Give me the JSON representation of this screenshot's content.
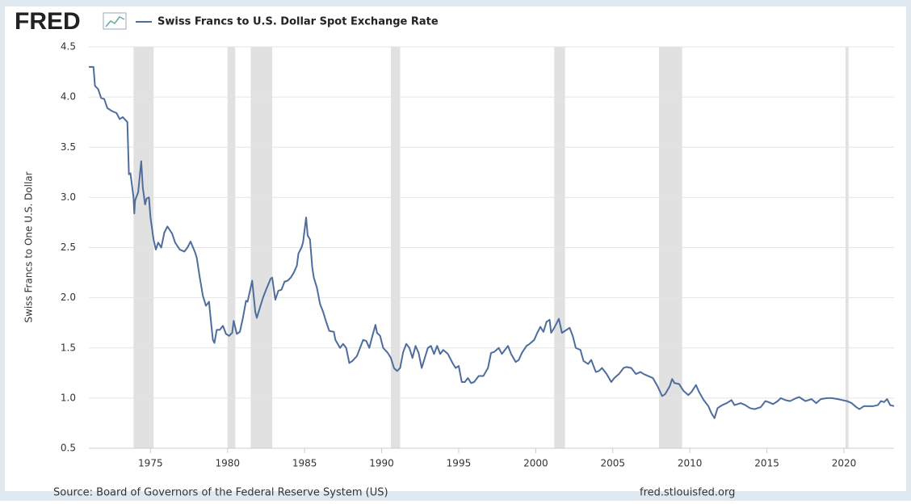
{
  "logo": "FRED",
  "source": "Source: Board of Governors of the Federal Reserve System (US)",
  "site": "fred.stlouisfed.org",
  "chart_data": {
    "type": "line",
    "title": "Swiss Francs to U.S. Dollar Spot Exchange Rate",
    "ylabel": "Swiss Francs to One U.S. Dollar",
    "xlim": [
      1971,
      2023.25
    ],
    "ylim": [
      0.5,
      4.5
    ],
    "xticks": [
      1975,
      1980,
      1985,
      1990,
      1995,
      2000,
      2005,
      2010,
      2015,
      2020
    ],
    "yticks": [
      {
        "value": 0.5,
        "label": "0.5"
      },
      {
        "value": 1,
        "label": "1.0"
      },
      {
        "value": 1.5,
        "label": "1.5"
      },
      {
        "value": 2,
        "label": "2.0"
      },
      {
        "value": 2.5,
        "label": "2.5"
      },
      {
        "value": 3,
        "label": "3.0"
      },
      {
        "value": 3.5,
        "label": "3.5"
      },
      {
        "value": 4,
        "label": "4.0"
      },
      {
        "value": 4.5,
        "label": "4.5"
      }
    ],
    "grid": true,
    "recessions": [
      [
        1973.9,
        1975.2
      ],
      [
        1980.0,
        1980.5
      ],
      [
        1981.5,
        1982.9
      ],
      [
        1990.6,
        1991.2
      ],
      [
        2001.2,
        2001.9
      ],
      [
        2008.0,
        2009.5
      ],
      [
        2020.1,
        2020.3
      ]
    ],
    "recession_color": "#e1e1e1",
    "x": [
      1971.0,
      1971.3,
      1971.4,
      1971.6,
      1971.8,
      1972.0,
      1972.2,
      1972.5,
      1972.8,
      1973.0,
      1973.2,
      1973.5,
      1973.6,
      1973.7,
      1973.9,
      1973.95,
      1974.0,
      1974.2,
      1974.4,
      1974.5,
      1974.65,
      1974.75,
      1974.9,
      1975.0,
      1975.2,
      1975.35,
      1975.5,
      1975.7,
      1975.9,
      1976.1,
      1976.4,
      1976.6,
      1976.9,
      1977.2,
      1977.4,
      1977.6,
      1977.9,
      1978.0,
      1978.2,
      1978.4,
      1978.6,
      1978.8,
      1978.9,
      1979.05,
      1979.15,
      1979.3,
      1979.5,
      1979.7,
      1979.9,
      1980.1,
      1980.3,
      1980.4,
      1980.6,
      1980.8,
      1981.0,
      1981.2,
      1981.3,
      1981.5,
      1981.6,
      1981.8,
      1981.9,
      1982.1,
      1982.3,
      1982.5,
      1982.8,
      1982.9,
      1983.1,
      1983.3,
      1983.5,
      1983.7,
      1983.9,
      1984.1,
      1984.3,
      1984.5,
      1984.6,
      1984.8,
      1984.9,
      1985.1,
      1985.2,
      1985.35,
      1985.5,
      1985.6,
      1985.8,
      1986.0,
      1986.2,
      1986.4,
      1986.6,
      1986.9,
      1987.0,
      1987.3,
      1987.5,
      1987.7,
      1987.9,
      1988.1,
      1988.4,
      1988.6,
      1988.8,
      1989.0,
      1989.2,
      1989.4,
      1989.6,
      1989.7,
      1989.9,
      1990.1,
      1990.4,
      1990.6,
      1990.8,
      1991.0,
      1991.2,
      1991.4,
      1991.6,
      1991.8,
      1992.0,
      1992.2,
      1992.4,
      1992.6,
      1992.8,
      1993.0,
      1993.2,
      1993.4,
      1993.6,
      1993.8,
      1994.0,
      1994.3,
      1994.6,
      1994.8,
      1995.0,
      1995.2,
      1995.4,
      1995.6,
      1995.8,
      1996.0,
      1996.3,
      1996.6,
      1996.9,
      1997.1,
      1997.3,
      1997.6,
      1997.8,
      1998.0,
      1998.2,
      1998.4,
      1998.7,
      1998.9,
      1999.1,
      1999.4,
      1999.6,
      1999.9,
      2000.1,
      2000.3,
      2000.5,
      2000.7,
      2000.9,
      2001.0,
      2001.2,
      2001.5,
      2001.7,
      2002.0,
      2002.2,
      2002.4,
      2002.6,
      2002.9,
      2003.1,
      2003.4,
      2003.6,
      2003.9,
      2004.1,
      2004.3,
      2004.6,
      2004.9,
      2005.1,
      2005.4,
      2005.7,
      2005.9,
      2006.2,
      2006.5,
      2006.8,
      2007.0,
      2007.3,
      2007.6,
      2007.9,
      2008.2,
      2008.4,
      2008.7,
      2008.85,
      2009.0,
      2009.3,
      2009.6,
      2009.9,
      2010.1,
      2010.4,
      2010.6,
      2010.9,
      2011.2,
      2011.4,
      2011.6,
      2011.8,
      2012.1,
      2012.4,
      2012.7,
      2012.9,
      2013.3,
      2013.6,
      2013.9,
      2014.2,
      2014.6,
      2014.9,
      2015.1,
      2015.4,
      2015.7,
      2015.9,
      2016.2,
      2016.5,
      2016.9,
      2017.1,
      2017.5,
      2017.9,
      2018.2,
      2018.5,
      2018.9,
      2019.2,
      2019.6,
      2019.9,
      2020.2,
      2020.5,
      2020.8,
      2021.0,
      2021.3,
      2021.6,
      2021.9,
      2022.2,
      2022.4,
      2022.6,
      2022.8,
      2023.0,
      2023.25
    ],
    "series": [
      {
        "name": "Swiss Francs to U.S. Dollar Spot Exchange Rate",
        "color": "#4e6d9d",
        "values": [
          4.3,
          4.3,
          4.11,
          4.08,
          3.99,
          3.98,
          3.89,
          3.86,
          3.84,
          3.78,
          3.8,
          3.75,
          3.23,
          3.24,
          3.0,
          2.84,
          2.97,
          3.05,
          3.36,
          3.1,
          2.93,
          2.99,
          3.0,
          2.8,
          2.58,
          2.48,
          2.55,
          2.5,
          2.65,
          2.71,
          2.64,
          2.55,
          2.48,
          2.46,
          2.5,
          2.56,
          2.45,
          2.4,
          2.2,
          2.02,
          1.92,
          1.96,
          1.8,
          1.58,
          1.55,
          1.68,
          1.68,
          1.72,
          1.64,
          1.62,
          1.65,
          1.77,
          1.64,
          1.66,
          1.8,
          1.97,
          1.96,
          2.1,
          2.17,
          1.86,
          1.8,
          1.9,
          2.0,
          2.08,
          2.19,
          2.2,
          1.98,
          2.07,
          2.08,
          2.16,
          2.17,
          2.2,
          2.25,
          2.32,
          2.44,
          2.5,
          2.55,
          2.8,
          2.62,
          2.58,
          2.3,
          2.2,
          2.1,
          1.94,
          1.86,
          1.76,
          1.67,
          1.66,
          1.58,
          1.5,
          1.54,
          1.5,
          1.35,
          1.37,
          1.42,
          1.5,
          1.58,
          1.57,
          1.5,
          1.62,
          1.73,
          1.65,
          1.62,
          1.5,
          1.45,
          1.4,
          1.3,
          1.27,
          1.3,
          1.46,
          1.54,
          1.5,
          1.4,
          1.52,
          1.45,
          1.3,
          1.4,
          1.5,
          1.52,
          1.44,
          1.52,
          1.44,
          1.48,
          1.44,
          1.35,
          1.3,
          1.32,
          1.16,
          1.16,
          1.2,
          1.15,
          1.16,
          1.22,
          1.22,
          1.3,
          1.45,
          1.46,
          1.5,
          1.44,
          1.48,
          1.52,
          1.44,
          1.36,
          1.38,
          1.45,
          1.52,
          1.54,
          1.58,
          1.65,
          1.71,
          1.66,
          1.76,
          1.78,
          1.65,
          1.7,
          1.79,
          1.65,
          1.68,
          1.7,
          1.62,
          1.5,
          1.48,
          1.37,
          1.34,
          1.38,
          1.26,
          1.27,
          1.3,
          1.24,
          1.16,
          1.2,
          1.24,
          1.3,
          1.31,
          1.3,
          1.24,
          1.26,
          1.24,
          1.22,
          1.2,
          1.12,
          1.02,
          1.04,
          1.12,
          1.19,
          1.15,
          1.14,
          1.07,
          1.03,
          1.06,
          1.13,
          1.06,
          0.98,
          0.92,
          0.85,
          0.8,
          0.9,
          0.93,
          0.95,
          0.98,
          0.93,
          0.95,
          0.93,
          0.9,
          0.89,
          0.91,
          0.97,
          0.96,
          0.94,
          0.97,
          1.0,
          0.98,
          0.97,
          1.0,
          1.01,
          0.97,
          0.99,
          0.95,
          0.99,
          1.0,
          1.0,
          0.99,
          0.98,
          0.97,
          0.95,
          0.91,
          0.89,
          0.92,
          0.92,
          0.92,
          0.93,
          0.97,
          0.96,
          0.99,
          0.93,
          0.92
        ]
      }
    ]
  }
}
